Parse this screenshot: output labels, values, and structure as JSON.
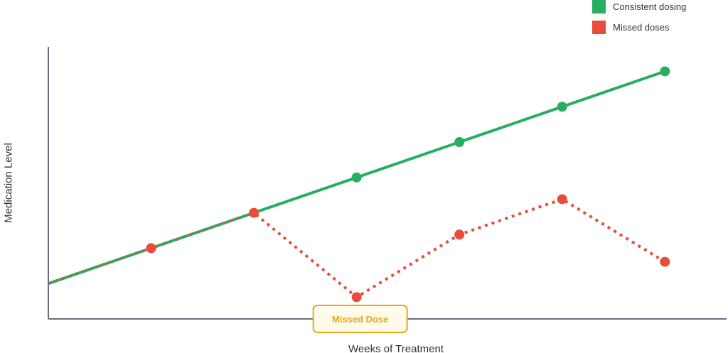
{
  "chart_data": {
    "type": "line",
    "title": "",
    "xlabel": "Weeks of Treatment",
    "ylabel": "Medication Level",
    "x": [
      0,
      1,
      2,
      3,
      4,
      5,
      6
    ],
    "xlim": [
      0,
      6.6
    ],
    "ylim": [
      0,
      10
    ],
    "grid": false,
    "legend_position": "top-right",
    "series": [
      {
        "name": "Consistent dosing",
        "color": "#27ae60",
        "line_style": "solid",
        "values": [
          1.3,
          2.6,
          3.9,
          5.2,
          6.5,
          7.8,
          9.1
        ]
      },
      {
        "name": "Missed doses",
        "color": "#e74c3c",
        "line_style": "dotted",
        "values": [
          1.3,
          2.6,
          3.9,
          0.8,
          3.1,
          4.4,
          2.1
        ]
      }
    ],
    "annotations": [
      {
        "text": "Missed Dose",
        "x": 3,
        "color": "#e6a817",
        "background": "#fffbea"
      }
    ]
  }
}
